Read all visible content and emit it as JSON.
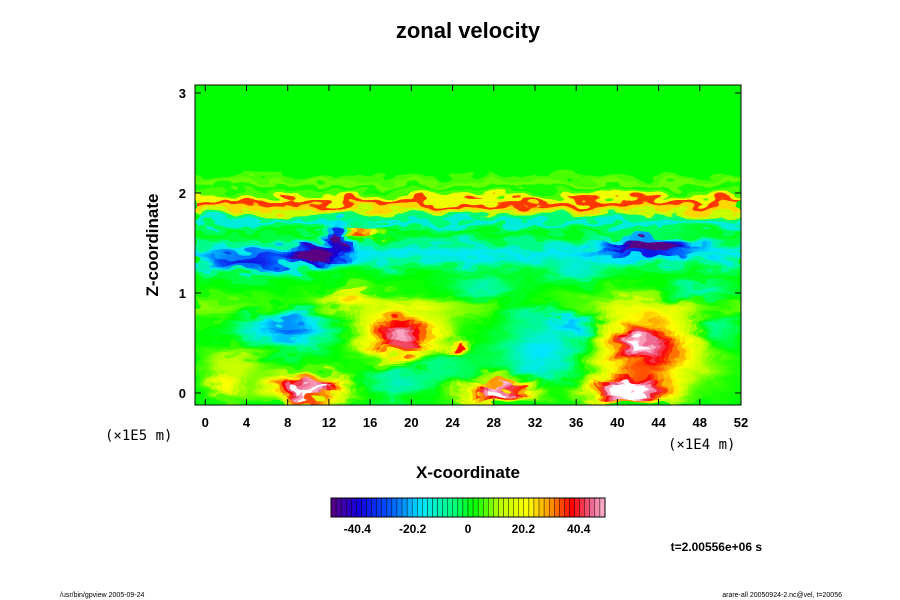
{
  "chart_data": {
    "type": "heatmap",
    "title": "zonal velocity",
    "xlabel": "X-coordinate",
    "ylabel": "Z-coordinate",
    "x_scale_label": "(×1E4 m)",
    "y_scale_label": "(×1E5 m)",
    "xlim": [
      -1,
      52
    ],
    "ylim": [
      -0.12,
      3.08
    ],
    "x_ticks": [
      "0",
      "4",
      "8",
      "12",
      "16",
      "20",
      "24",
      "28",
      "32",
      "36",
      "40",
      "44",
      "48",
      "52"
    ],
    "y_ticks": [
      "0",
      "1",
      "2",
      "3"
    ],
    "colorbar": {
      "range": [
        -50,
        50
      ],
      "ticks": [
        "-40.4",
        "-20.2",
        "0",
        "20.2",
        "40.4"
      ],
      "tick_values": [
        -40.4,
        -20.2,
        0,
        20.2,
        40.4
      ]
    },
    "background_value": 2,
    "bands": [
      {
        "z": 1.89,
        "width": 0.05,
        "value": 36
      },
      {
        "z": 1.97,
        "width": 0.03,
        "value": 14
      },
      {
        "z": 1.81,
        "width": 0.03,
        "value": 10
      },
      {
        "z": 1.71,
        "width": 0.05,
        "value": -16
      },
      {
        "z": 2.12,
        "width": 0.05,
        "value": 6
      },
      {
        "z": 1.4,
        "width": 0.12,
        "value": -18
      },
      {
        "z": 0.85,
        "width": 0.12,
        "value": 7
      }
    ],
    "features": [
      {
        "x": 10,
        "z": 0.05,
        "rx": 3.5,
        "rz": 0.13,
        "value": 55
      },
      {
        "x": 28.5,
        "z": 0.02,
        "rx": 3.2,
        "rz": 0.11,
        "value": 55
      },
      {
        "x": 41,
        "z": 0.02,
        "rx": 3.5,
        "rz": 0.13,
        "value": 56
      },
      {
        "x": 43,
        "z": 0.45,
        "rx": 5,
        "rz": 0.35,
        "value": 42
      },
      {
        "x": 42,
        "z": 0.5,
        "rx": 1.5,
        "rz": 0.14,
        "value": 12
      },
      {
        "x": 19,
        "z": 0.58,
        "rx": 3.5,
        "rz": 0.22,
        "value": 48
      },
      {
        "x": 24.5,
        "z": 0.45,
        "rx": 1,
        "rz": 0.07,
        "value": 38
      },
      {
        "x": 8,
        "z": 0.65,
        "rx": 4,
        "rz": 0.18,
        "value": -30
      },
      {
        "x": 3,
        "z": 0.3,
        "rx": 3,
        "rz": 0.15,
        "value": 12
      },
      {
        "x": 33,
        "z": 0.4,
        "rx": 4,
        "rz": 0.3,
        "value": -20
      },
      {
        "x": 36,
        "z": 0.72,
        "rx": 2.5,
        "rz": 0.12,
        "value": -22
      },
      {
        "x": 31,
        "z": 0.82,
        "rx": 2.5,
        "rz": 0.1,
        "value": -14
      },
      {
        "x": 10.5,
        "z": 1.38,
        "rx": 2.2,
        "rz": 0.1,
        "value": -55
      },
      {
        "x": 13,
        "z": 1.55,
        "rx": 1,
        "rz": 0.1,
        "value": -52
      },
      {
        "x": 15.3,
        "z": 1.63,
        "rx": 1.2,
        "rz": 0.06,
        "value": 40
      },
      {
        "x": 43,
        "z": 1.48,
        "rx": 4,
        "rz": 0.08,
        "value": -52
      },
      {
        "x": 18,
        "z": 0.1,
        "rx": 3,
        "rz": 0.12,
        "value": -12
      },
      {
        "x": 22,
        "z": 0.28,
        "rx": 4,
        "rz": 0.2,
        "value": -10
      },
      {
        "x": 49,
        "z": 0.65,
        "rx": 2.5,
        "rz": 0.2,
        "value": -15
      },
      {
        "x": 4,
        "z": 1.3,
        "rx": 4,
        "rz": 0.1,
        "value": -30
      },
      {
        "x": 27,
        "z": 1.05,
        "rx": 3,
        "rz": 0.12,
        "value": -12
      },
      {
        "x": 36,
        "z": 1.22,
        "rx": 3,
        "rz": 0.1,
        "value": -12
      },
      {
        "x": 48,
        "z": 1.02,
        "rx": 3,
        "rz": 0.1,
        "value": -14
      },
      {
        "x": 14,
        "z": 0.96,
        "rx": 2.5,
        "rz": 0.08,
        "value": 20
      },
      {
        "x": 2,
        "z": 0.08,
        "rx": 1.5,
        "rz": 0.1,
        "value": 20
      }
    ]
  },
  "annotation": {
    "time": "t=2.00556e+06 s"
  },
  "footer": {
    "left": "/usr/bin/gpview 2005-09-24",
    "right": "arare-all 20050924-2.nc@vel, t=20056"
  }
}
